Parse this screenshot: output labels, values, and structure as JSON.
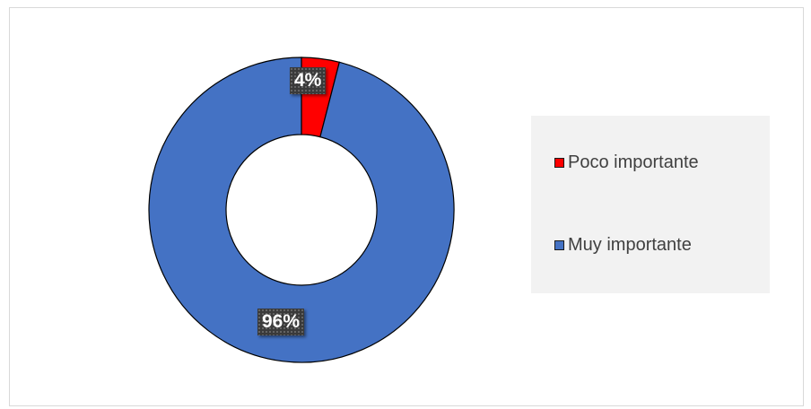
{
  "chart_data": {
    "type": "pie",
    "style": "doughnut",
    "categories": [
      "Poco importante",
      "Muy importante"
    ],
    "values": [
      4,
      96
    ],
    "colors": [
      "#ff0000",
      "#4472c4"
    ],
    "data_labels": [
      "4%",
      "96%"
    ],
    "legend": {
      "placement": "right",
      "entries": [
        "Poco importante",
        "Muy importante"
      ]
    }
  }
}
